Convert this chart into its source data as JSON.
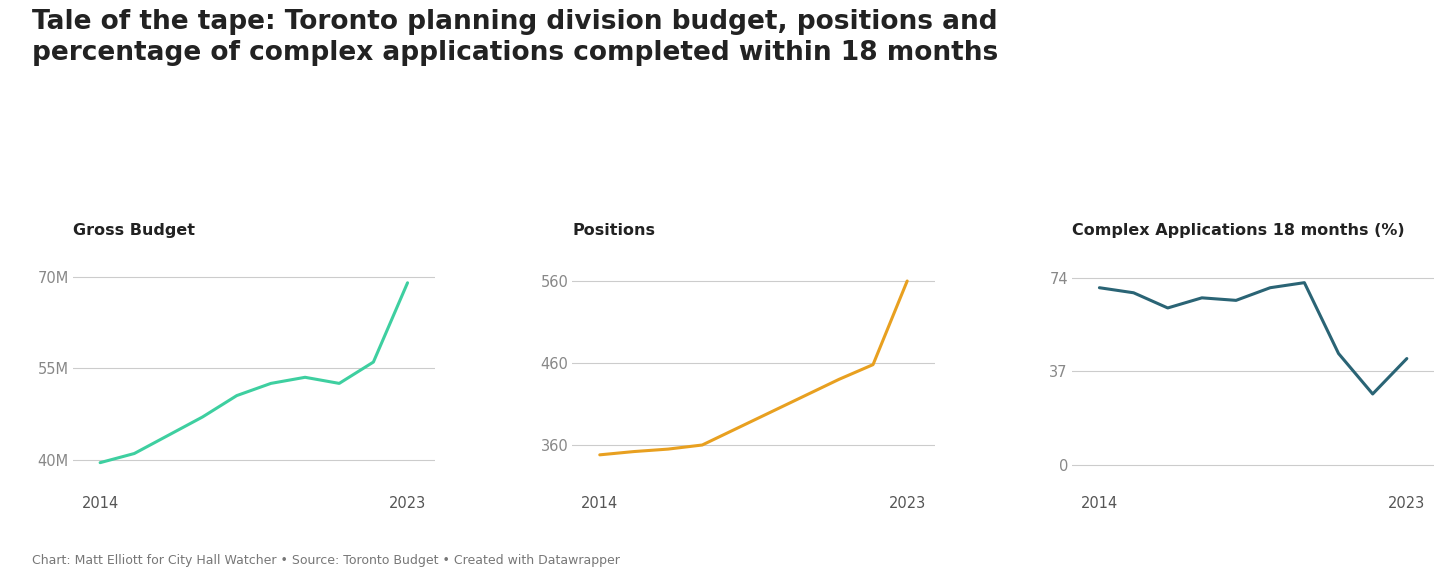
{
  "title": "Tale of the tape: Toronto planning division budget, positions and\npercentage of complex applications completed within 18 months",
  "title_fontsize": 19,
  "subtitle_color": "#222222",
  "background_color": "#ffffff",
  "footer": "Chart: Matt Elliott for City Hall Watcher • Source: Toronto Budget • Created with Datawrapper",
  "chart1": {
    "label": "Gross Budget",
    "years": [
      2014,
      2015,
      2016,
      2017,
      2018,
      2019,
      2020,
      2021,
      2022,
      2023
    ],
    "values": [
      39.5,
      41.0,
      44.0,
      47.0,
      50.5,
      52.5,
      53.5,
      52.5,
      56.0,
      69.0
    ],
    "color": "#3ecfa0",
    "yticks": [
      40,
      55,
      70
    ],
    "ytick_labels": [
      "40M",
      "55M",
      "70M"
    ],
    "ylim": [
      35,
      74
    ],
    "xticks": [
      2014,
      2023
    ]
  },
  "chart2": {
    "label": "Positions",
    "years": [
      2014,
      2015,
      2016,
      2017,
      2018,
      2019,
      2020,
      2021,
      2022,
      2023
    ],
    "values": [
      348,
      352,
      355,
      360,
      380,
      400,
      420,
      440,
      458,
      560
    ],
    "color": "#e8a020",
    "yticks": [
      360,
      460,
      560
    ],
    "ytick_labels": [
      "360",
      "460",
      "560"
    ],
    "ylim": [
      305,
      595
    ],
    "xticks": [
      2014,
      2023
    ]
  },
  "chart3": {
    "label": "Complex Applications 18 months (%)",
    "years": [
      2014,
      2015,
      2016,
      2017,
      2018,
      2019,
      2020,
      2021,
      2022,
      2023
    ],
    "values": [
      70,
      68,
      62,
      66,
      65,
      70,
      72,
      44,
      28,
      42
    ],
    "color": "#2a6475",
    "yticks": [
      0,
      37,
      74
    ],
    "ytick_labels": [
      "0",
      "37",
      "74"
    ],
    "ylim": [
      -10,
      84
    ],
    "xticks": [
      2014,
      2023
    ]
  }
}
